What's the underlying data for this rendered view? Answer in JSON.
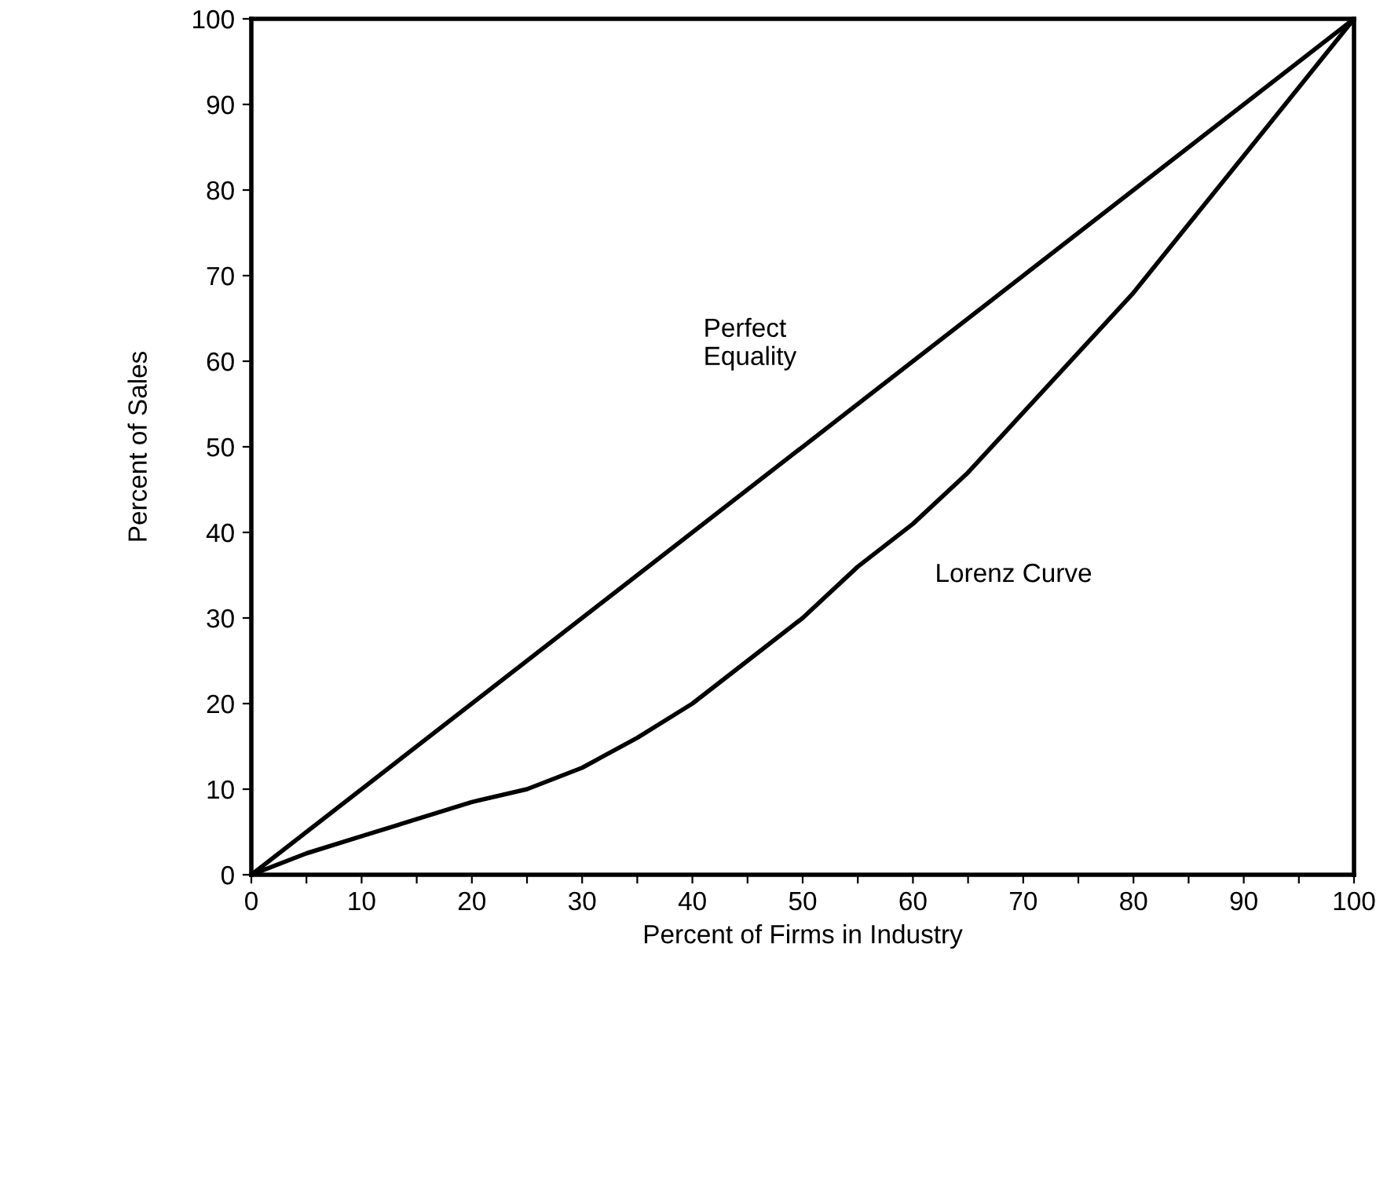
{
  "chart_data": {
    "type": "line",
    "xlabel": "Percent of Firms in Industry",
    "ylabel": "Percent of Sales",
    "series": [
      {
        "name": "Perfect\nEquality",
        "color": "#000000",
        "x": [
          0,
          100
        ],
        "values": [
          0,
          100
        ]
      },
      {
        "name": "Lorenz Curve",
        "color": "#000000",
        "x": [
          0,
          5,
          10,
          15,
          20,
          25,
          30,
          35,
          40,
          45,
          50,
          55,
          60,
          65,
          70,
          75,
          80,
          85,
          90,
          95,
          100
        ],
        "values": [
          0,
          2.5,
          4.5,
          6.5,
          8.5,
          10,
          12.5,
          16,
          20,
          25,
          30,
          36,
          41,
          47,
          54,
          61,
          68,
          76,
          84,
          92,
          100
        ]
      }
    ],
    "xlim": [
      0,
      100
    ],
    "ylim": [
      0,
      100
    ],
    "xticks": [
      0,
      {
        "value": 5,
        "label": null
      },
      10,
      {
        "value": 15,
        "label": null
      },
      20,
      {
        "value": 25,
        "label": null
      },
      30,
      {
        "value": 35,
        "label": null
      },
      40,
      {
        "value": 45,
        "label": null
      },
      50,
      {
        "value": 55,
        "label": null
      },
      60,
      {
        "value": 65,
        "label": null
      },
      70,
      {
        "value": 75,
        "label": null
      },
      80,
      {
        "value": 85,
        "label": null
      },
      90,
      {
        "value": 95,
        "label": null
      },
      100
    ],
    "yticks": [
      0,
      10,
      20,
      30,
      40,
      50,
      60,
      70,
      80,
      90,
      100
    ],
    "grid": false,
    "legend": false,
    "marker": "none",
    "line_style": "solid"
  }
}
